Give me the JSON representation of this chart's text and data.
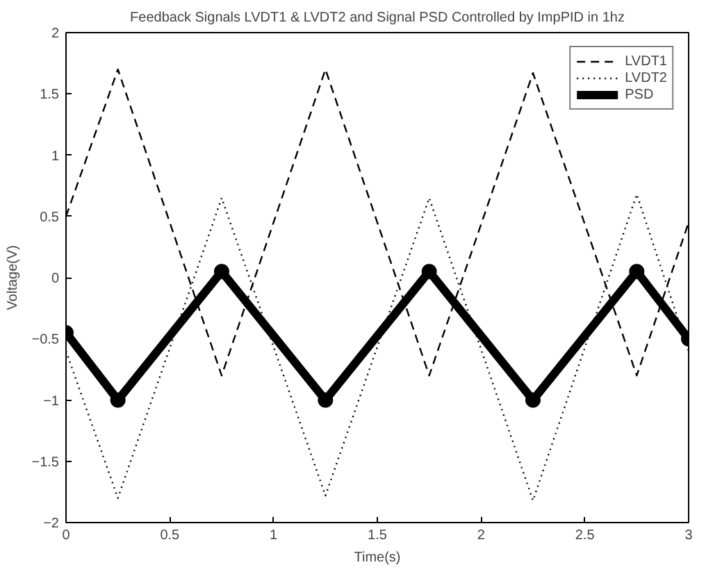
{
  "chart_data": {
    "type": "line",
    "title": "Feedback Signals LVDT1 & LVDT2 and Signal PSD Controlled by ImpPID in 1hz",
    "xlabel": "Time(s)",
    "ylabel": "Voltage(V)",
    "xlim": [
      0,
      3
    ],
    "ylim": [
      -2,
      2
    ],
    "xticks": [
      0,
      0.5,
      1,
      1.5,
      2,
      2.5,
      3
    ],
    "yticks": [
      -2,
      -1.5,
      -1,
      -0.5,
      0,
      0.5,
      1,
      1.5,
      2
    ],
    "grid": false,
    "legend": "top right",
    "x": [
      0,
      0.25,
      0.75,
      1.25,
      1.75,
      2.25,
      2.75,
      3
    ],
    "series": [
      {
        "name": "LVDT1",
        "color": "#000000",
        "line_style": "dashed",
        "marker": "none",
        "values": [
          0.5,
          1.7,
          -0.8,
          1.7,
          -0.8,
          1.67,
          -0.8,
          0.45
        ]
      },
      {
        "name": "LVDT2",
        "color": "#000000",
        "line_style": "dotted",
        "marker": "none",
        "values": [
          -0.6,
          -1.8,
          0.65,
          -1.78,
          0.65,
          -1.82,
          0.68,
          -0.6
        ]
      },
      {
        "name": "PSD",
        "color": "#000000",
        "line_style": "solid",
        "marker": "circle",
        "values": [
          -0.45,
          -1.0,
          0.05,
          -1.0,
          0.05,
          -1.0,
          0.05,
          -0.5
        ]
      }
    ]
  }
}
